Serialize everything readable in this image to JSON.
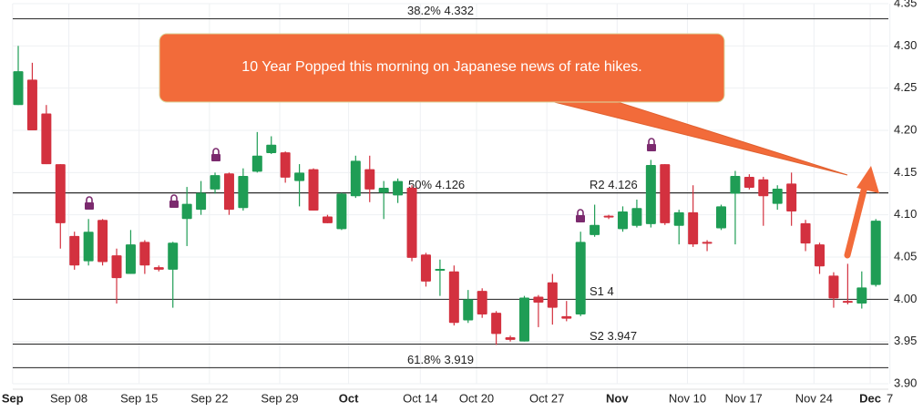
{
  "chart_data": {
    "type": "candlestick",
    "annotation": "10 Year Popped this morning on Japanese news of rate hikes.",
    "up_color": "#1f9d55",
    "down_color": "#d3313f",
    "categories": [
      null,
      null,
      null,
      null,
      null,
      null,
      null,
      null,
      null,
      null,
      null,
      null,
      null,
      null,
      null,
      null,
      null,
      null,
      null,
      null,
      null,
      null,
      null,
      null,
      null,
      null,
      null,
      null,
      null,
      null,
      null,
      null,
      null,
      null,
      null,
      null,
      null,
      null,
      null,
      null,
      null,
      null,
      null,
      null,
      null,
      null,
      null,
      null,
      null,
      null,
      null,
      null,
      null,
      null,
      null,
      null,
      null,
      null,
      null,
      null,
      null,
      null
    ],
    "open": [
      4.23,
      4.26,
      4.22,
      4.16,
      4.075,
      4.045,
      4.094,
      4.052,
      4.03,
      4.068,
      4.038,
      4.035,
      4.095,
      4.106,
      4.13,
      4.149,
      4.108,
      4.151,
      4.173,
      4.174,
      4.14,
      4.154,
      4.098,
      4.083,
      4.122,
      4.154,
      4.126,
      4.123,
      4.132,
      4.053,
      4.034,
      4.033,
      3.975,
      4.01,
      3.984,
      3.955,
      3.95,
      4.003,
      4.02,
      3.98,
      3.982,
      4.076,
      4.099,
      4.083,
      4.087,
      4.089,
      4.16,
      4.087,
      4.103,
      4.068,
      4.084,
      4.125,
      4.145,
      4.142,
      4.113,
      4.137,
      4.09,
      4.065,
      4.028,
      3.998,
      3.995,
      4.017
    ],
    "high": [
      4.3,
      4.28,
      4.23,
      4.16,
      4.08,
      4.095,
      4.095,
      4.06,
      4.082,
      4.07,
      4.04,
      4.068,
      4.133,
      4.14,
      4.15,
      4.15,
      4.155,
      4.198,
      4.193,
      4.175,
      4.16,
      4.155,
      4.1,
      4.126,
      4.17,
      4.17,
      4.14,
      4.143,
      4.135,
      4.055,
      4.047,
      4.04,
      4.011,
      4.013,
      3.986,
      3.957,
      4.004,
      4.005,
      4.03,
      3.998,
      4.08,
      4.112,
      4.1,
      4.11,
      4.118,
      4.165,
      4.16,
      4.106,
      4.135,
      4.07,
      4.112,
      4.152,
      4.148,
      4.145,
      4.135,
      4.15,
      4.094,
      4.067,
      4.032,
      4.042,
      4.033,
      4.095
    ],
    "low": [
      4.23,
      4.2,
      4.16,
      4.06,
      4.035,
      4.04,
      4.04,
      3.995,
      4.03,
      4.03,
      4.033,
      3.99,
      4.063,
      4.1,
      4.125,
      4.1,
      4.105,
      4.15,
      4.172,
      4.138,
      4.11,
      4.105,
      4.09,
      4.082,
      4.12,
      4.115,
      4.095,
      4.114,
      4.045,
      4.015,
      4.004,
      3.969,
      3.972,
      3.978,
      3.946,
      3.95,
      3.95,
      3.967,
      3.97,
      3.974,
      3.98,
      4.074,
      4.095,
      4.08,
      4.085,
      4.085,
      4.088,
      4.065,
      4.062,
      4.057,
      4.082,
      4.065,
      4.13,
      4.087,
      4.106,
      4.087,
      4.057,
      4.03,
      3.99,
      3.994,
      3.989,
      4.015
    ],
    "close": [
      4.27,
      4.2,
      4.16,
      4.09,
      4.04,
      4.08,
      4.044,
      4.025,
      4.065,
      4.04,
      4.035,
      4.067,
      4.113,
      4.126,
      4.147,
      4.106,
      4.146,
      4.17,
      4.183,
      4.144,
      4.15,
      4.105,
      4.09,
      4.125,
      4.164,
      4.13,
      4.132,
      4.14,
      4.049,
      4.021,
      4.036,
      3.972,
      4.0,
      3.982,
      3.959,
      3.952,
      4.002,
      3.996,
      3.99,
      3.977,
      4.068,
      4.088,
      4.097,
      4.104,
      4.108,
      4.159,
      4.09,
      4.103,
      4.065,
      4.066,
      4.11,
      4.146,
      4.132,
      4.122,
      4.131,
      4.104,
      4.066,
      4.039,
      4.001,
      3.996,
      4.014,
      4.093
    ],
    "xticks": [
      {
        "value": -0.4,
        "label": "Sep",
        "bold": true
      },
      {
        "value": 3.6,
        "label": "Sep 08"
      },
      {
        "value": 8.6,
        "label": "Sep 15"
      },
      {
        "value": 13.6,
        "label": "Sep 22"
      },
      {
        "value": 18.6,
        "label": "Sep 29"
      },
      {
        "value": 23.5,
        "label": "Oct",
        "bold": true
      },
      {
        "value": 28.6,
        "label": "Oct 14"
      },
      {
        "value": 32.6,
        "label": "Oct 20"
      },
      {
        "value": 37.6,
        "label": "Oct 27"
      },
      {
        "value": 42.6,
        "label": "Nov",
        "bold": true
      },
      {
        "value": 47.6,
        "label": "Nov 10"
      },
      {
        "value": 51.6,
        "label": "Nov 17"
      },
      {
        "value": 56.6,
        "label": "Nov 24"
      },
      {
        "value": 60.6,
        "label": "Dec",
        "bold": true
      },
      {
        "value": 62,
        "label": "7"
      }
    ],
    "ylim": [
      3.9,
      4.35
    ],
    "yticks": [
      {
        "value": 4.35,
        "label": "4.35"
      },
      {
        "value": 4.3,
        "label": "4.30"
      },
      {
        "value": 4.25,
        "label": "4.25"
      },
      {
        "value": 4.2,
        "label": "4.20"
      },
      {
        "value": 4.15,
        "label": "4.15"
      },
      {
        "value": 4.1,
        "label": "4.10"
      },
      {
        "value": 4.05,
        "label": "4.05"
      },
      {
        "value": 4,
        "label": "4.00"
      },
      {
        "value": 3.95,
        "label": "3.95"
      },
      {
        "value": 3.9,
        "label": "3.90"
      }
    ],
    "grid": true,
    "levels": [
      {
        "label": "38.2% 4.332",
        "value": 4.332
      },
      {
        "label": "50% 4.126",
        "value": 4.126
      },
      {
        "label": "R2 4.126",
        "value": 4.126
      },
      {
        "label": "S1 4",
        "value": 4
      },
      {
        "label": "S2 3.947",
        "value": 3.947
      },
      {
        "label": "61.8% 3.919",
        "value": 3.919
      }
    ]
  }
}
